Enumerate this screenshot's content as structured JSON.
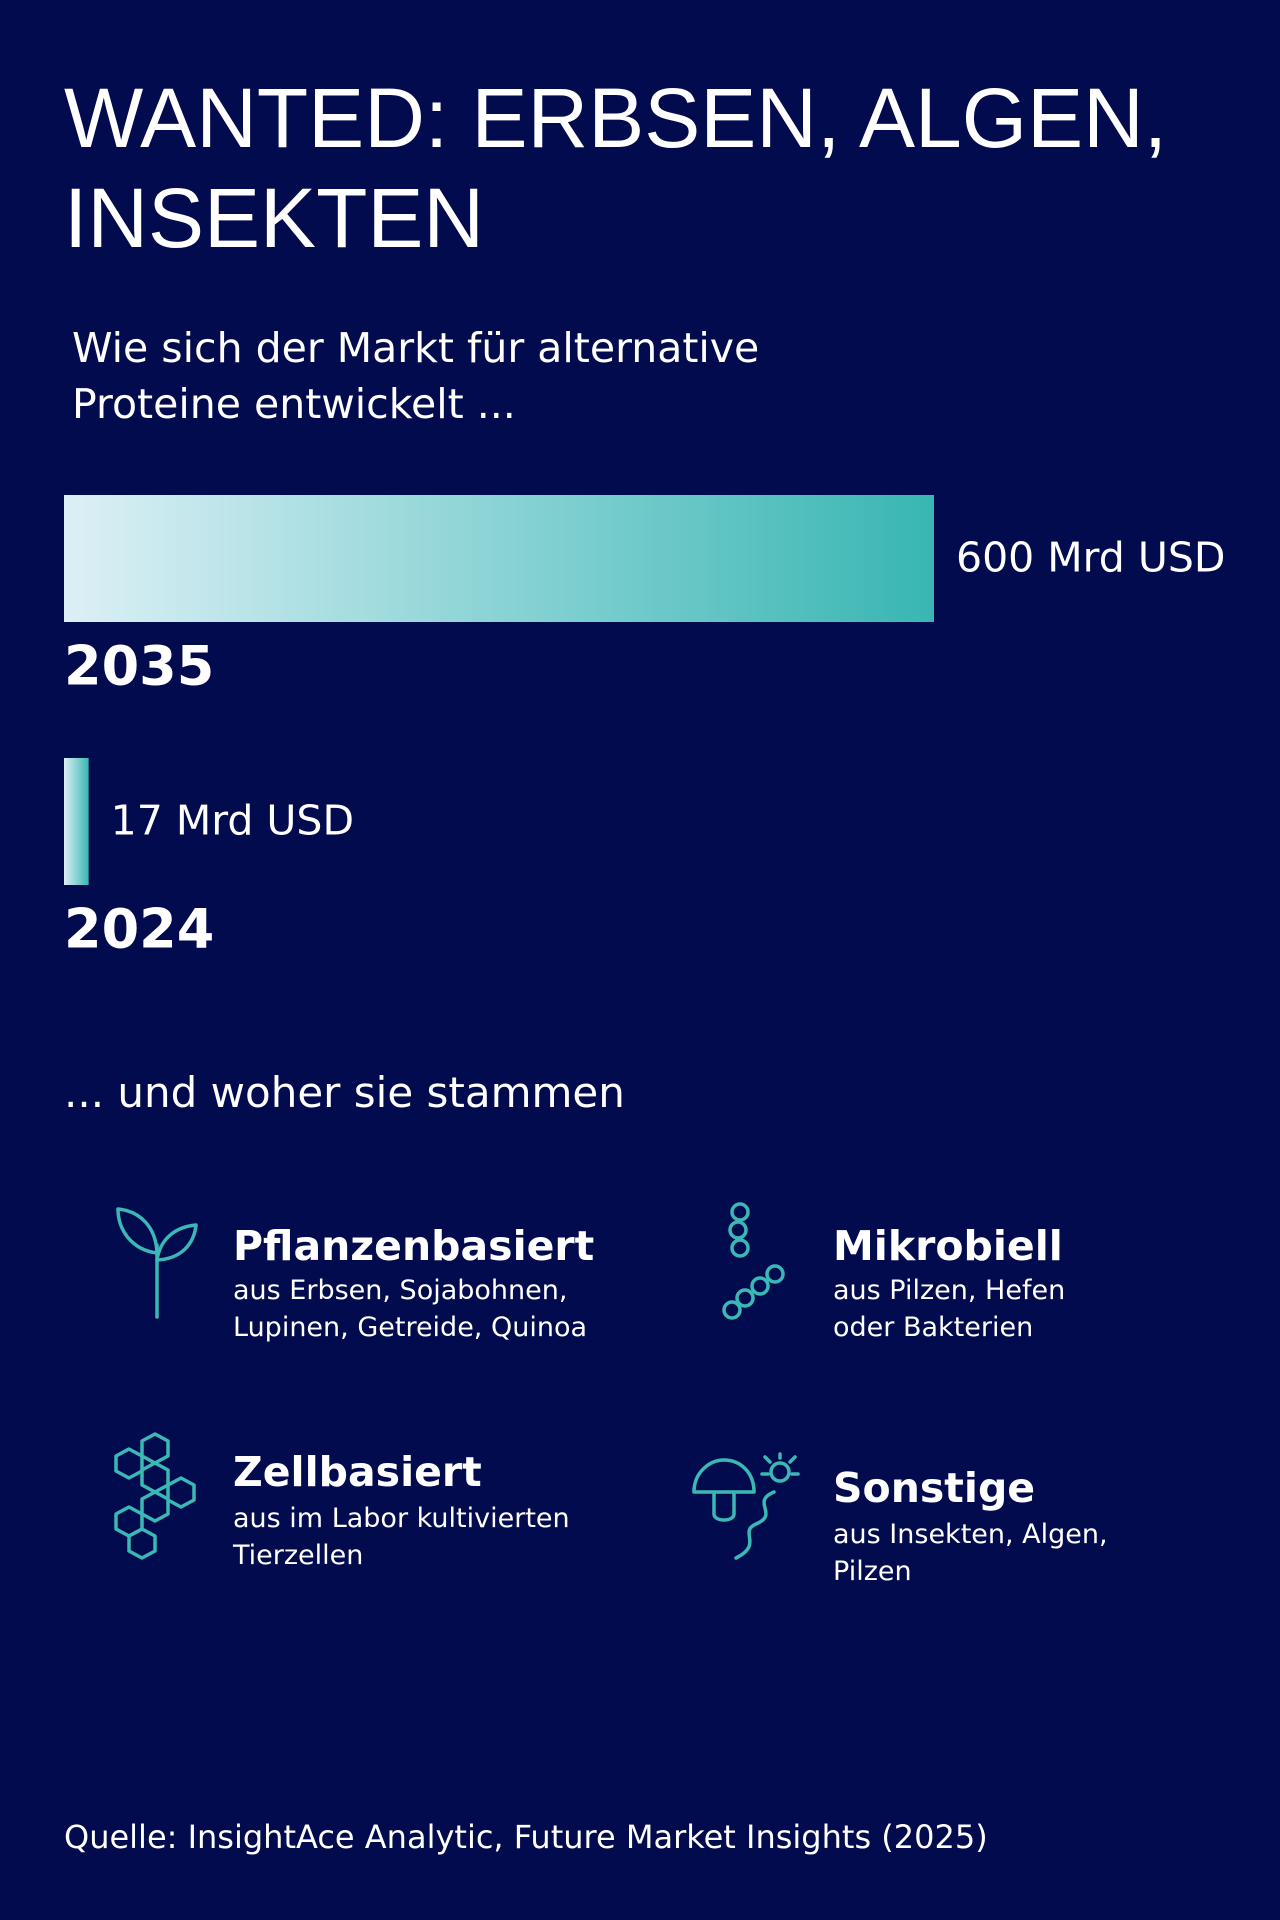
{
  "chart_data": {
    "type": "bar",
    "orientation": "horizontal",
    "title_lines": [
      "WANTED: ERBSEN, ALGEN,",
      "INSEKTEN"
    ],
    "subtitle_lines": [
      "Wie sich der Markt für alternative",
      "Proteine entwickelt ..."
    ],
    "categories": [
      "2035",
      "2024"
    ],
    "values": [
      600,
      17
    ],
    "value_labels": [
      "600 Mrd USD",
      "17 Mrd USD"
    ],
    "color_start": "#dcf0f6",
    "color_end": "#38b6b3"
  },
  "sources_section": {
    "heading": "... und woher sie stammen",
    "items": [
      {
        "title": "Pflanzenbasiert",
        "desc_lines": [
          "aus Erbsen, Sojabohnen,",
          "Lupinen, Getreide, Quinoa"
        ]
      },
      {
        "title": "Mikrobiell",
        "desc_lines": [
          "aus Pilzen, Hefen",
          "oder Bakterien"
        ]
      },
      {
        "title": "Zellbasiert",
        "desc_lines": [
          "aus im Labor kultivierten",
          "Tierzellen"
        ]
      },
      {
        "title": "Sonstige",
        "desc_lines": [
          "aus Insekten, Algen,",
          "Pilzen"
        ]
      }
    ]
  },
  "footer": {
    "source": "Quelle: InsightAce Analytic, Future Market Insights (2025)"
  }
}
